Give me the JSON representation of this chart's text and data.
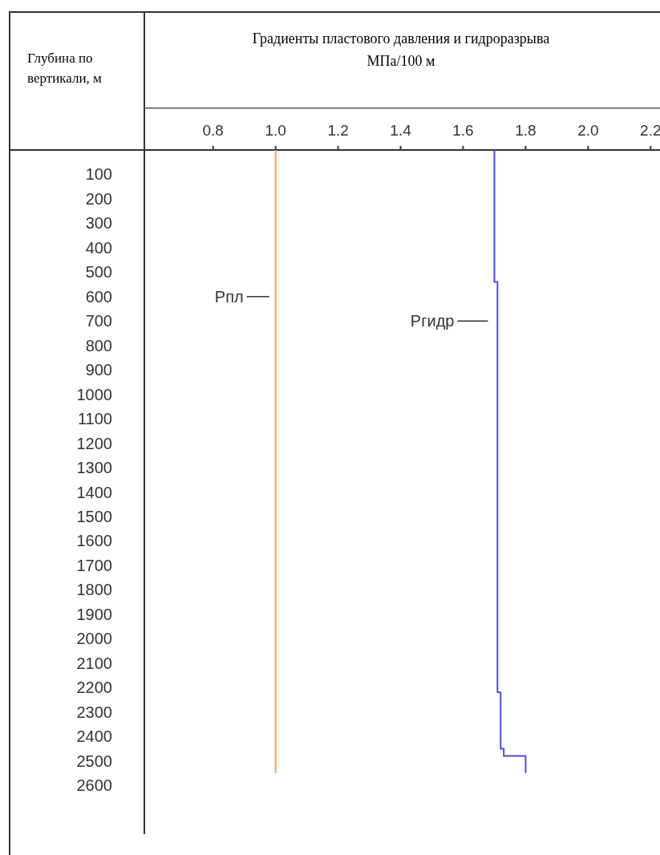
{
  "chart_data": {
    "type": "line",
    "title": "Градиенты пластового давления и гидроразрыва",
    "subtitle": "МПа/100 м",
    "ylabel": "Глубина по вертикали, м",
    "xlim": [
      0.58,
      2.23
    ],
    "xticks": [
      {
        "value": 0.8,
        "label": "0.8"
      },
      {
        "value": 1.0,
        "label": "1.0"
      },
      {
        "value": 1.2,
        "label": "1.2"
      },
      {
        "value": 1.4,
        "label": "1.4"
      },
      {
        "value": 1.6,
        "label": "1.6"
      },
      {
        "value": 1.8,
        "label": "1.8"
      },
      {
        "value": 2.0,
        "label": "2.0"
      },
      {
        "value": 2.2,
        "label": "2.2"
      }
    ],
    "ylim": [
      2800,
      0
    ],
    "yticks": [
      100,
      200,
      300,
      400,
      500,
      600,
      700,
      800,
      900,
      1000,
      1100,
      1200,
      1300,
      1400,
      1500,
      1600,
      1700,
      1800,
      1900,
      2000,
      2100,
      2200,
      2300,
      2400,
      2500,
      2600
    ],
    "grid": false,
    "marker": "none",
    "line_style": "solid",
    "series": [
      {
        "name": "Рпл",
        "color": "#f6a05a",
        "x": [
          1.0,
          1.0
        ],
        "values": [
          0,
          2550
        ]
      },
      {
        "name": "Ргидр",
        "color": "#4b4be0",
        "x": [
          1.7,
          1.7,
          1.71,
          1.71,
          1.72,
          1.72,
          1.73,
          1.73,
          1.8,
          1.8
        ],
        "values": [
          0,
          540,
          540,
          2220,
          2220,
          2450,
          2450,
          2480,
          2480,
          2550
        ]
      }
    ]
  }
}
